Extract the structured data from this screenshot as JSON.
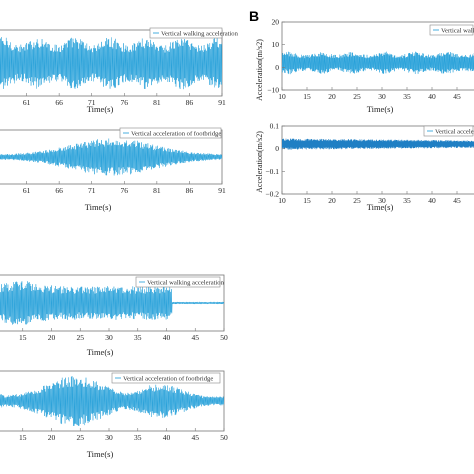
{
  "panel_label": "B",
  "colors": {
    "trace": "#1a9bd7",
    "trace_dense": "#1f7fc4",
    "axis": "#777777",
    "text": "#222222"
  },
  "chart_data": [
    {
      "type": "line",
      "id": "a_walk",
      "legend": "Vertical walking acceleration",
      "xlabel": "Time(s)",
      "ylabel": "",
      "xlim": [
        56,
        91
      ],
      "ylim": [
        -10,
        10
      ],
      "xticks": [
        "61",
        "66",
        "71",
        "76",
        "81",
        "86",
        "91"
      ],
      "yticks": [],
      "envelope": "uniform",
      "amplitude": 8
    },
    {
      "type": "line",
      "id": "a_bridge",
      "legend": "Vertical acceleration of footbridge",
      "xlabel": "Time(s)",
      "ylabel": "",
      "xlim": [
        56,
        91
      ],
      "ylim": [
        -1,
        1
      ],
      "xticks": [
        "61",
        "66",
        "71",
        "76",
        "81",
        "86",
        "91"
      ],
      "yticks": [],
      "envelope": "spindle",
      "amplitude": 0.7
    },
    {
      "type": "line",
      "id": "b_walk",
      "legend": "Vertical walking acceleration",
      "xlabel": "Time(s)",
      "ylabel": "Acceleration(m/s2)",
      "xlim": [
        10,
        50
      ],
      "ylim": [
        -10,
        20
      ],
      "xticks": [
        "10",
        "15",
        "20",
        "25",
        "30",
        "35",
        "40",
        "45"
      ],
      "yticks": [
        "20",
        "10",
        "0",
        "−10"
      ],
      "envelope": "uniform",
      "amplitude": 5
    },
    {
      "type": "line",
      "id": "b_bridge",
      "legend": "Vertical acceleratio",
      "xlabel": "Time(s)",
      "ylabel": "Acceleration(m/s2)",
      "xlim": [
        10,
        50
      ],
      "ylim": [
        -0.2,
        0.1
      ],
      "xticks": [
        "10",
        "15",
        "20",
        "25",
        "30",
        "35",
        "40",
        "45"
      ],
      "yticks": [
        "0.1",
        "0",
        "−0.1",
        "−0.2"
      ],
      "envelope": "dense-flat",
      "amplitude": 0.025
    },
    {
      "type": "line",
      "id": "c_walk",
      "legend": "Vertical walking acceleration",
      "xlabel": "Time(s)",
      "ylabel": "",
      "xlim": [
        10,
        50
      ],
      "ylim": [
        -10,
        10
      ],
      "xticks": [
        "15",
        "20",
        "25",
        "30",
        "35",
        "40",
        "45",
        "50"
      ],
      "yticks": [],
      "envelope": "walk-then-stop",
      "amplitude": 8,
      "stop_time": 41
    },
    {
      "type": "line",
      "id": "c_bridge",
      "legend": "Vertical acceleration of footbridge",
      "xlabel": "Time(s)",
      "ylabel": "",
      "xlim": [
        10,
        50
      ],
      "ylim": [
        -1,
        1
      ],
      "xticks": [
        "15",
        "20",
        "25",
        "30",
        "35",
        "40",
        "45",
        "50"
      ],
      "yticks": [],
      "envelope": "double-spindle",
      "amplitude": 0.85
    }
  ]
}
